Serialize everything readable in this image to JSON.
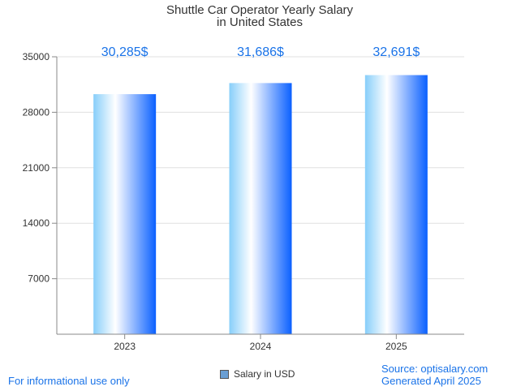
{
  "chart_data": {
    "type": "bar",
    "title": [
      "Shuttle Car Operator Yearly Salary",
      "in United States"
    ],
    "categories": [
      "2023",
      "2024",
      "2025"
    ],
    "series": [
      {
        "name": "Salary in USD",
        "values": [
          30285,
          31686,
          32691
        ]
      }
    ],
    "data_labels": [
      "30,285$",
      "31,686$",
      "32,691$"
    ],
    "ylim": [
      0,
      35000
    ],
    "yticks": [
      7000,
      14000,
      21000,
      28000,
      35000
    ],
    "ytick_labels": [
      "7000",
      "14000",
      "21000",
      "28000",
      "35000"
    ],
    "grid": true,
    "legend_position": "bottom-center"
  },
  "footer": {
    "left": "For informational use only",
    "source": "Source: optisalary.com",
    "generated": "Generated April 2025"
  },
  "colors": {
    "accent": "#1a73e8",
    "bar_light": "#87cefa",
    "bar_dark": "#0a60ff",
    "grid": "#e0e0e0",
    "axis": "#888888",
    "legend_swatch": "#6a9fd4"
  }
}
